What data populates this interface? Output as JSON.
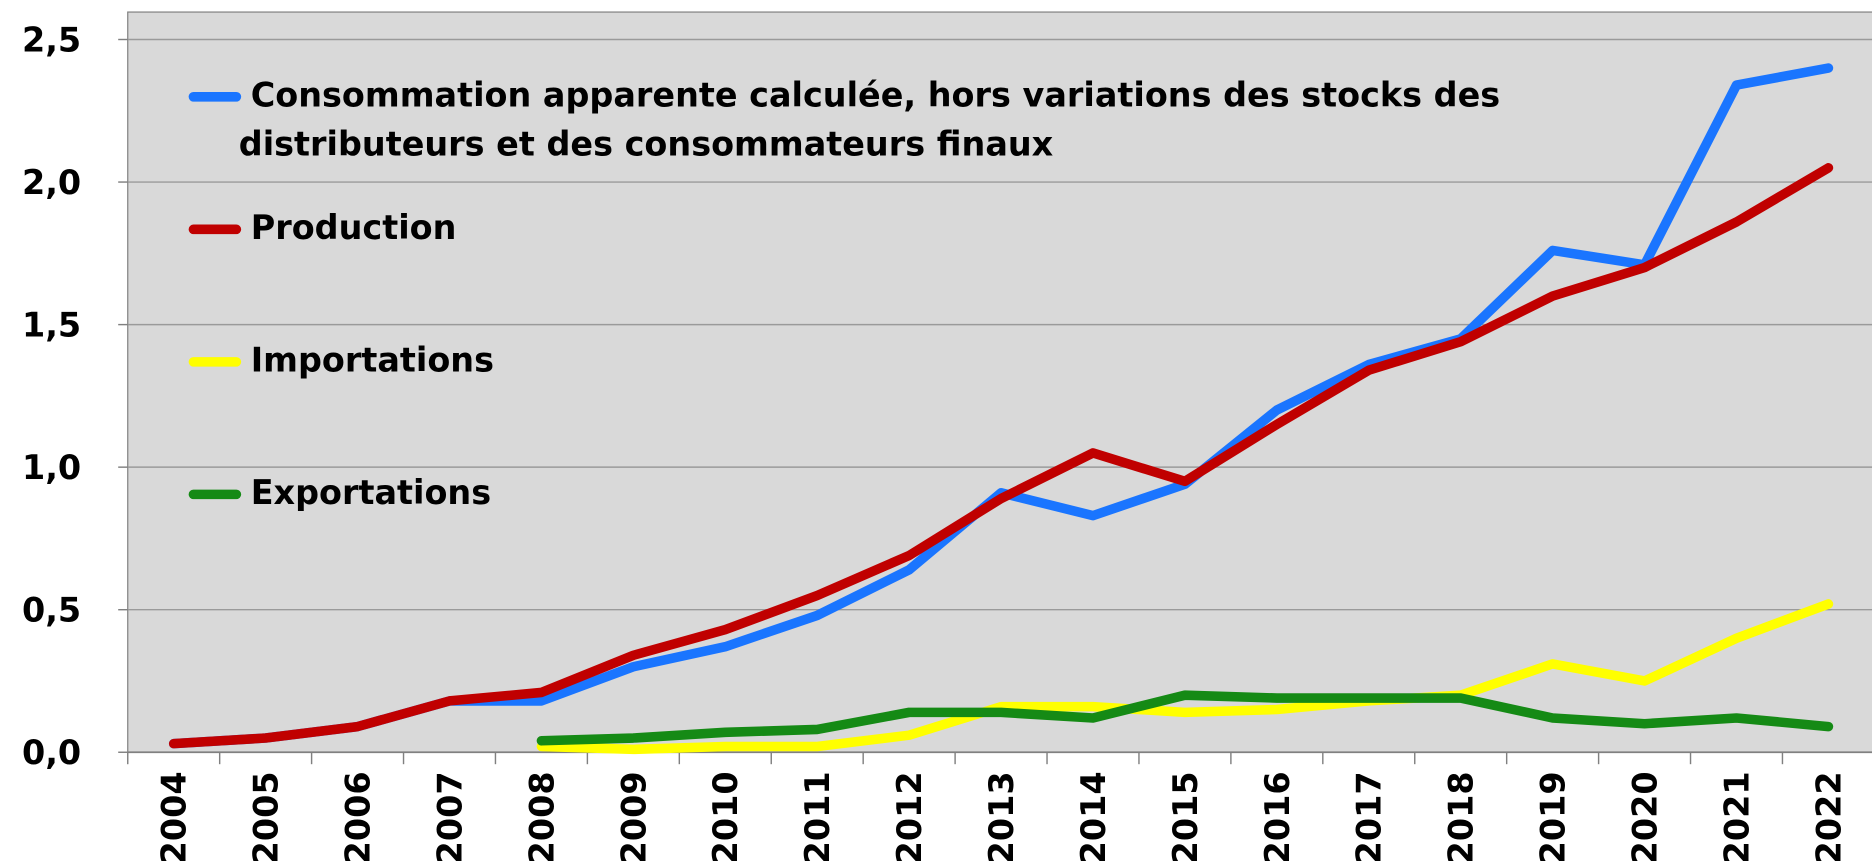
{
  "chart_data": {
    "type": "line",
    "categories": [
      "2004",
      "2005",
      "2006",
      "2007",
      "2008",
      "2009",
      "2010",
      "2011",
      "2012",
      "2013",
      "2014",
      "2015",
      "2016",
      "2017",
      "2018",
      "2019",
      "2020",
      "2021",
      "2022"
    ],
    "series": [
      {
        "name": "Consommation apparente calculée, hors variations des stocks des distributeurs et des consommateurs finaux",
        "color": "#1a75ff",
        "values": [
          0.03,
          0.05,
          0.09,
          0.18,
          0.18,
          0.3,
          0.37,
          0.48,
          0.64,
          0.91,
          0.83,
          0.94,
          1.2,
          1.36,
          1.45,
          1.76,
          1.71,
          2.34,
          2.4
        ]
      },
      {
        "name": "Production",
        "color": "#c00000",
        "values": [
          0.03,
          0.05,
          0.09,
          0.18,
          0.21,
          0.34,
          0.43,
          0.55,
          0.69,
          0.89,
          1.05,
          0.95,
          1.15,
          1.34,
          1.44,
          1.6,
          1.7,
          1.86,
          2.05
        ]
      },
      {
        "name": "Importations",
        "color": "#ffff00",
        "values": [
          null,
          null,
          null,
          null,
          0.02,
          0.01,
          0.02,
          0.02,
          0.06,
          0.16,
          0.16,
          0.14,
          0.15,
          0.18,
          0.2,
          0.31,
          0.25,
          0.4,
          0.52
        ]
      },
      {
        "name": "Exportations",
        "color": "#158a15",
        "values": [
          null,
          null,
          null,
          null,
          0.04,
          0.05,
          0.07,
          0.08,
          0.14,
          0.14,
          0.12,
          0.2,
          0.19,
          0.19,
          0.19,
          0.12,
          0.1,
          0.12,
          0.09
        ]
      }
    ],
    "ylim": [
      0,
      2.5
    ],
    "yticks": [
      {
        "value": 0,
        "label": "0,0"
      },
      {
        "value": 0.5,
        "label": "0,5"
      },
      {
        "value": 1,
        "label": "1,0"
      },
      {
        "value": 1.5,
        "label": "1,5"
      },
      {
        "value": 2,
        "label": "2,0"
      },
      {
        "value": 2.5,
        "label": "2,5"
      }
    ],
    "grid": true,
    "legend": "upper left"
  }
}
